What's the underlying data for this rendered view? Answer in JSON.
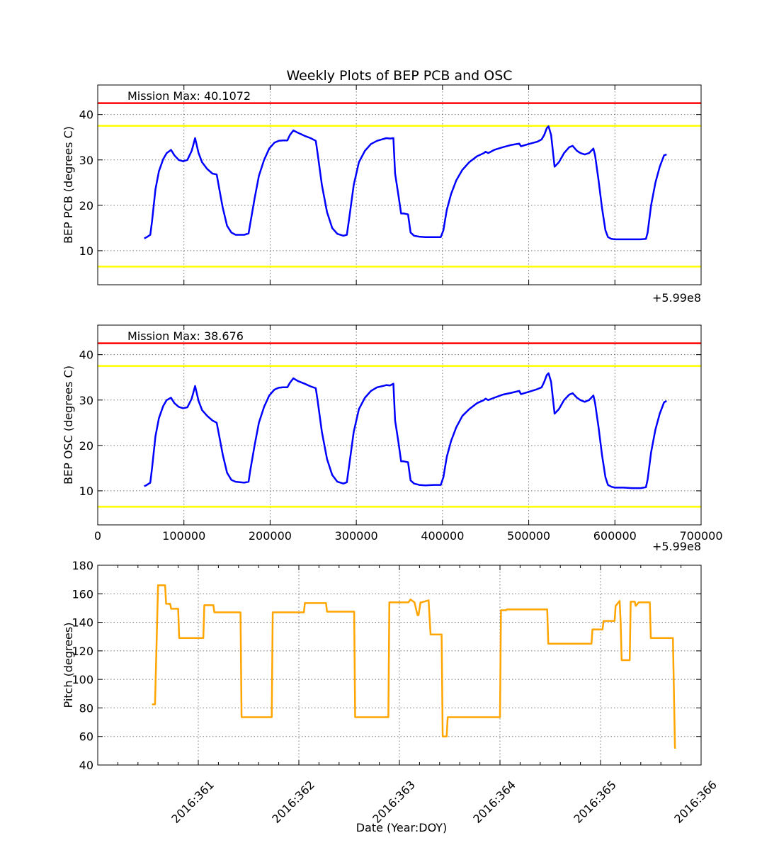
{
  "title": "Weekly Plots of BEP PCB and OSC",
  "chart_data": [
    {
      "type": "line",
      "title": "Weekly Plots of BEP PCB and OSC",
      "ylabel": "BEP PCB (degrees C)",
      "xlabel": "",
      "annotation": "Mission Max: 40.1072",
      "x_offset_label": "+5.99e8",
      "xlim": [
        0,
        700000
      ],
      "ylim": [
        2.5,
        46.5
      ],
      "yticks": [
        10,
        20,
        30,
        40
      ],
      "grid": true,
      "hlines": [
        {
          "y": 42.5,
          "color": "#ff0000"
        },
        {
          "y": 37.5,
          "color": "#ffff00"
        },
        {
          "y": 6.5,
          "color": "#ffff00"
        }
      ],
      "series": [
        {
          "color": "#0000ff",
          "x": [
            54000,
            57000,
            61000,
            63000,
            67000,
            71000,
            76000,
            80000,
            85000,
            89000,
            94000,
            99000,
            104000,
            109000,
            113000,
            117000,
            121000,
            127000,
            133000,
            138000,
            143000,
            145000,
            150000,
            155000,
            160000,
            165000,
            170000,
            175000,
            177000,
            182000,
            187000,
            193000,
            199000,
            205000,
            210000,
            215000,
            220000,
            223000,
            227000,
            232000,
            240000,
            247000,
            253000,
            255000,
            260000,
            266000,
            272000,
            278000,
            285000,
            289000,
            292000,
            297000,
            303000,
            310000,
            317000,
            324000,
            331000,
            335000,
            339000,
            343000,
            345000,
            349000,
            352000,
            355000,
            360000,
            363000,
            367000,
            373000,
            380000,
            390000,
            398000,
            401000,
            405000,
            410000,
            416000,
            423000,
            431000,
            440000,
            448000,
            450000,
            453000,
            460000,
            470000,
            480000,
            489000,
            491000,
            500000,
            510000,
            515000,
            518000,
            521000,
            523000,
            526000,
            530000,
            535000,
            541000,
            547000,
            551000,
            556000,
            560000,
            565000,
            570000,
            575000,
            577000,
            581000,
            585000,
            589000,
            592000,
            596000,
            600000,
            610000,
            620000,
            630000,
            636000,
            638000,
            642000,
            647000,
            652000,
            657000,
            660000
          ],
          "values": [
            12.7,
            13.0,
            13.5,
            16.5,
            23.5,
            27.5,
            30.2,
            31.5,
            32.2,
            31.0,
            30.0,
            29.7,
            30.0,
            32.0,
            34.8,
            31.5,
            29.5,
            28.0,
            27.0,
            26.8,
            21.5,
            19.5,
            15.5,
            14.0,
            13.5,
            13.5,
            13.5,
            13.8,
            16.0,
            21.5,
            26.5,
            30.0,
            32.5,
            33.8,
            34.2,
            34.3,
            34.3,
            35.5,
            36.5,
            36.0,
            35.3,
            34.8,
            34.2,
            31.5,
            24.5,
            18.5,
            15.0,
            13.7,
            13.3,
            13.5,
            17.5,
            24.5,
            29.5,
            32.0,
            33.5,
            34.2,
            34.6,
            34.8,
            34.7,
            34.8,
            27.0,
            22.0,
            18.2,
            18.2,
            18.0,
            14.0,
            13.3,
            13.1,
            13.0,
            13.0,
            13.0,
            14.5,
            19.0,
            22.5,
            25.5,
            27.8,
            29.5,
            30.8,
            31.5,
            31.8,
            31.5,
            32.2,
            32.8,
            33.3,
            33.6,
            33.0,
            33.5,
            34.0,
            34.5,
            35.5,
            37.0,
            37.4,
            35.5,
            28.5,
            29.5,
            31.5,
            32.8,
            33.1,
            32.0,
            31.5,
            31.2,
            31.5,
            32.5,
            31.0,
            25.5,
            19.5,
            14.5,
            13.0,
            12.6,
            12.5,
            12.5,
            12.5,
            12.5,
            12.6,
            14.0,
            20.0,
            25.0,
            28.5,
            31.0,
            31.2
          ]
        }
      ]
    },
    {
      "type": "line",
      "title": "",
      "ylabel": "BEP OSC (degrees C)",
      "xlabel": "",
      "annotation": "Mission Max: 38.676",
      "x_offset_label": "+5.99e8",
      "xlim": [
        0,
        700000
      ],
      "ylim": [
        2.5,
        46.5
      ],
      "xticks": [
        0,
        100000,
        200000,
        300000,
        400000,
        500000,
        600000,
        700000
      ],
      "yticks": [
        10,
        20,
        30,
        40
      ],
      "grid": true,
      "hlines": [
        {
          "y": 42.5,
          "color": "#ff0000"
        },
        {
          "y": 37.5,
          "color": "#ffff00"
        },
        {
          "y": 6.5,
          "color": "#ffff00"
        }
      ],
      "series": [
        {
          "color": "#0000ff",
          "x": [
            54000,
            57000,
            61000,
            63000,
            67000,
            71000,
            76000,
            80000,
            85000,
            89000,
            94000,
            99000,
            104000,
            109000,
            113000,
            117000,
            121000,
            127000,
            133000,
            138000,
            143000,
            145000,
            150000,
            155000,
            160000,
            165000,
            170000,
            175000,
            177000,
            182000,
            187000,
            193000,
            199000,
            205000,
            210000,
            215000,
            220000,
            223000,
            227000,
            232000,
            240000,
            247000,
            253000,
            255000,
            260000,
            266000,
            272000,
            278000,
            285000,
            289000,
            292000,
            297000,
            303000,
            310000,
            317000,
            324000,
            331000,
            335000,
            339000,
            343000,
            345000,
            349000,
            352000,
            355000,
            360000,
            363000,
            367000,
            373000,
            380000,
            390000,
            398000,
            401000,
            405000,
            410000,
            416000,
            423000,
            431000,
            440000,
            448000,
            450000,
            453000,
            460000,
            470000,
            480000,
            489000,
            491000,
            500000,
            510000,
            515000,
            518000,
            521000,
            523000,
            526000,
            530000,
            535000,
            541000,
            547000,
            551000,
            556000,
            560000,
            565000,
            570000,
            575000,
            577000,
            581000,
            585000,
            589000,
            592000,
            596000,
            600000,
            610000,
            620000,
            630000,
            636000,
            638000,
            642000,
            647000,
            652000,
            657000,
            660000
          ],
          "values": [
            11.0,
            11.3,
            11.8,
            15.0,
            22.0,
            26.0,
            28.7,
            30.0,
            30.5,
            29.3,
            28.5,
            28.2,
            28.4,
            30.3,
            33.1,
            29.8,
            27.8,
            26.5,
            25.5,
            25.0,
            20.0,
            18.0,
            14.0,
            12.4,
            12.0,
            11.9,
            11.8,
            12.0,
            14.5,
            20.0,
            25.0,
            28.5,
            31.0,
            32.3,
            32.7,
            32.8,
            32.8,
            33.8,
            34.8,
            34.2,
            33.6,
            33.0,
            32.6,
            30.0,
            23.0,
            17.0,
            13.5,
            12.0,
            11.6,
            11.9,
            16.0,
            23.0,
            28.0,
            30.5,
            32.0,
            32.8,
            33.1,
            33.3,
            33.2,
            33.6,
            25.5,
            20.5,
            16.5,
            16.5,
            16.3,
            12.3,
            11.6,
            11.3,
            11.2,
            11.3,
            11.3,
            13.0,
            17.5,
            21.0,
            24.0,
            26.5,
            28.0,
            29.3,
            30.0,
            30.3,
            30.0,
            30.5,
            31.2,
            31.6,
            32.0,
            31.3,
            31.8,
            32.4,
            32.8,
            34.0,
            35.5,
            35.9,
            34.0,
            27.0,
            28.0,
            30.0,
            31.2,
            31.5,
            30.5,
            30.0,
            29.6,
            30.0,
            31.0,
            29.3,
            24.0,
            18.0,
            13.0,
            11.3,
            10.9,
            10.7,
            10.7,
            10.6,
            10.6,
            10.8,
            12.5,
            18.5,
            23.5,
            27.0,
            29.5,
            29.8
          ]
        }
      ]
    },
    {
      "type": "line",
      "title": "",
      "ylabel": "Pitch (degrees)",
      "xlabel": "Date (Year:DOY)",
      "xlim": [
        360.0,
        366.0
      ],
      "ylim": [
        40,
        180
      ],
      "xticks": [
        361,
        362,
        363,
        364,
        365,
        366
      ],
      "xticklabels": [
        "2016:361",
        "2016:362",
        "2016:363",
        "2016:364",
        "2016:365",
        "2016:366"
      ],
      "yticks": [
        40,
        60,
        80,
        100,
        120,
        140,
        160,
        180
      ],
      "grid": true,
      "series": [
        {
          "color": "#ffa500",
          "x": [
            360.54,
            360.57,
            360.6,
            360.67,
            360.68,
            360.72,
            360.73,
            360.8,
            360.81,
            361.05,
            361.06,
            361.15,
            361.16,
            361.42,
            361.43,
            361.73,
            361.74,
            362.05,
            362.06,
            362.27,
            362.28,
            362.55,
            362.56,
            362.89,
            362.9,
            363.09,
            363.11,
            363.15,
            363.18,
            363.19,
            363.21,
            363.22,
            363.29,
            363.31,
            363.32,
            363.42,
            363.43,
            363.47,
            363.48,
            364.0,
            364.01,
            364.06,
            364.07,
            364.47,
            364.48,
            364.91,
            364.92,
            365.02,
            365.03,
            365.14,
            365.15,
            365.19,
            365.2,
            365.21,
            365.22,
            365.29,
            365.3,
            365.34,
            365.35,
            365.38,
            365.4,
            365.49,
            365.5,
            365.72,
            365.74,
            365.75
          ],
          "values": [
            82.5,
            82.5,
            166,
            166,
            153,
            153,
            149.5,
            149.5,
            129,
            129,
            152,
            152,
            147,
            147,
            73.5,
            73.5,
            147,
            147,
            153.5,
            153.5,
            147.5,
            147.5,
            73.5,
            73.5,
            154,
            154,
            156,
            154,
            145,
            145,
            154,
            154,
            155.5,
            131.5,
            131.5,
            131.5,
            60,
            60,
            73.5,
            73.5,
            148.5,
            148.5,
            149,
            149,
            125,
            125,
            135,
            135,
            141,
            141,
            151.5,
            155,
            140,
            113.5,
            113.5,
            113.5,
            154.5,
            154.5,
            151.5,
            154,
            154,
            154,
            129,
            129,
            52,
            52
          ]
        }
      ]
    }
  ]
}
